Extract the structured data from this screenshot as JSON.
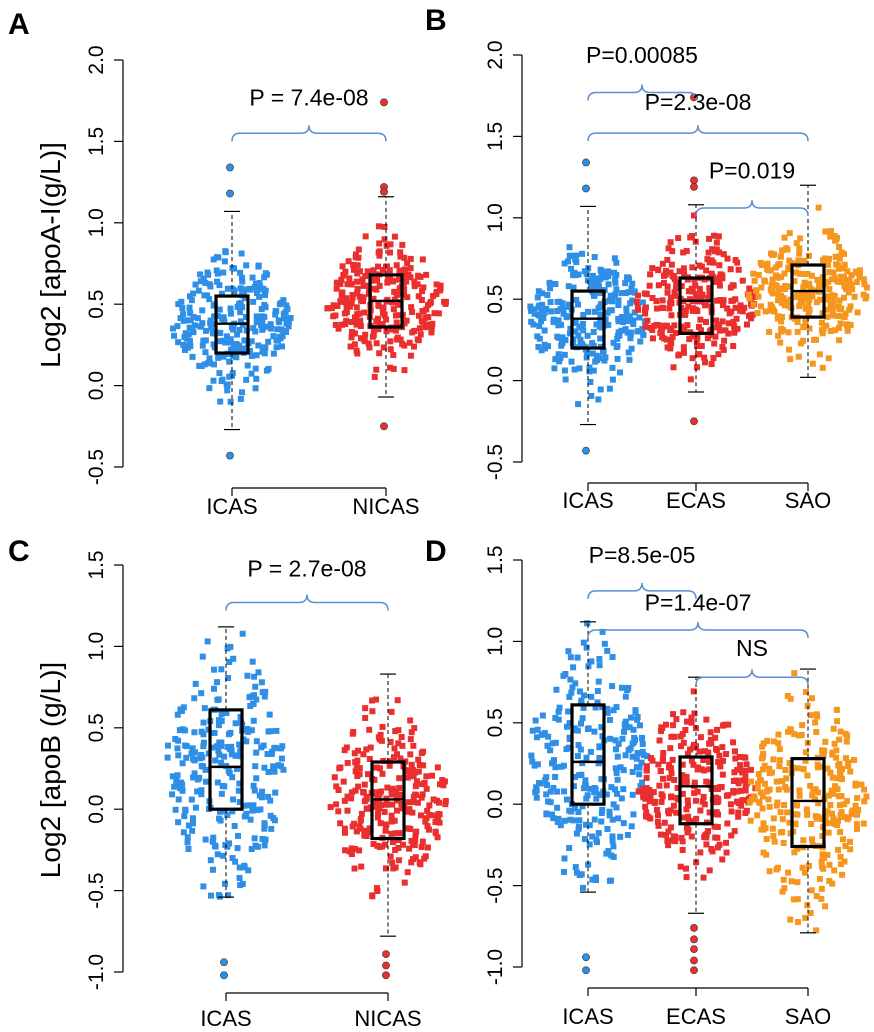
{
  "figure": {
    "ylabels": [
      "Log2 [apoA-I(g/L)]",
      "Log2 [apoB (g/L)]"
    ]
  },
  "colors": {
    "ICAS": "#2f8fe6",
    "NICAS": "#ea2f2f",
    "ECAS": "#ea2f2f",
    "SAO": "#f5961e",
    "bracket": "#5b8fd0",
    "box": "#000000",
    "axis": "#000000"
  },
  "chart_data": [
    {
      "panel": "A",
      "type": "boxplot",
      "groups": [
        "ICAS",
        "NICAS"
      ],
      "ylim": [
        -0.5,
        2.0
      ],
      "yticks": [
        "-0.5",
        "0.0",
        "0.5",
        "1.0",
        "1.5",
        "2.0"
      ],
      "yticks_num": [
        -0.5,
        0.0,
        0.5,
        1.0,
        1.5,
        2.0
      ],
      "boxes": [
        {
          "group": "ICAS",
          "q1": 0.2,
          "median": 0.38,
          "q3": 0.55,
          "whisker_low": -0.27,
          "whisker_high": 1.07,
          "outliers": [
            1.34,
            1.18,
            -0.43
          ],
          "spread_low": -0.27,
          "spread_high": 1.07
        },
        {
          "group": "NICAS",
          "q1": 0.36,
          "median": 0.52,
          "q3": 0.68,
          "whisker_low": -0.07,
          "whisker_high": 1.16,
          "outliers": [
            1.74,
            1.22,
            1.19,
            -0.25
          ],
          "spread_low": -0.07,
          "spread_high": 1.16
        }
      ],
      "comparisons": [
        {
          "from": "ICAS",
          "to": "NICAS",
          "label": "P = 7.4e-08",
          "y": 1.55,
          "label_y": 1.77
        }
      ]
    },
    {
      "panel": "B",
      "type": "boxplot",
      "groups": [
        "ICAS",
        "ECAS",
        "SAO"
      ],
      "ylim": [
        -0.5,
        2.0
      ],
      "yticks": [
        "-0.5",
        "0.0",
        "0.5",
        "1.0",
        "1.5",
        "2.0"
      ],
      "yticks_num": [
        -0.5,
        0.0,
        0.5,
        1.0,
        1.5,
        2.0
      ],
      "boxes": [
        {
          "group": "ICAS",
          "q1": 0.2,
          "median": 0.38,
          "q3": 0.55,
          "whisker_low": -0.27,
          "whisker_high": 1.07,
          "outliers": [
            1.34,
            1.18,
            -0.43
          ],
          "spread_low": -0.27,
          "spread_high": 1.07
        },
        {
          "group": "ECAS",
          "q1": 0.29,
          "median": 0.49,
          "q3": 0.63,
          "whisker_low": -0.07,
          "whisker_high": 1.08,
          "outliers": [
            1.74,
            1.23,
            1.19,
            -0.25
          ],
          "spread_low": -0.07,
          "spread_high": 1.08
        },
        {
          "group": "SAO",
          "q1": 0.39,
          "median": 0.55,
          "q3": 0.71,
          "whisker_low": 0.02,
          "whisker_high": 1.2,
          "outliers": [],
          "spread_low": 0.02,
          "spread_high": 1.2
        }
      ],
      "comparisons": [
        {
          "from": "ICAS",
          "to": "ECAS",
          "label": "P=0.00085",
          "y": 1.77,
          "label_y": 2.0
        },
        {
          "from": "ICAS",
          "to": "SAO",
          "label": "P=2.3e-08",
          "y": 1.52,
          "label_y": 1.71
        },
        {
          "from": "ECAS",
          "to": "SAO",
          "label": "P=0.019",
          "y": 1.06,
          "label_y": 1.29
        }
      ]
    },
    {
      "panel": "C",
      "type": "boxplot",
      "groups": [
        "ICAS",
        "NICAS"
      ],
      "ylim": [
        -1.0,
        1.5
      ],
      "yticks": [
        "-1.0",
        "-0.5",
        "0.0",
        "0.5",
        "1.0",
        "1.5"
      ],
      "yticks_num": [
        -1.0,
        -0.5,
        0.0,
        0.5,
        1.0,
        1.5
      ],
      "boxes": [
        {
          "group": "ICAS",
          "q1": 0.0,
          "median": 0.26,
          "q3": 0.61,
          "whisker_low": -0.54,
          "whisker_high": 1.12,
          "outliers": [
            -0.94,
            -1.02
          ],
          "spread_low": -0.54,
          "spread_high": 1.12
        },
        {
          "group": "NICAS",
          "q1": -0.18,
          "median": 0.06,
          "q3": 0.29,
          "whisker_low": -0.78,
          "whisker_high": 0.83,
          "outliers": [
            -0.89,
            -0.96,
            -1.02
          ],
          "spread_low": -0.78,
          "spread_high": 0.83
        }
      ],
      "comparisons": [
        {
          "from": "ICAS",
          "to": "NICAS",
          "label": "P = 2.7e-08",
          "y": 1.27,
          "label_y": 1.48
        }
      ]
    },
    {
      "panel": "D",
      "type": "boxplot",
      "groups": [
        "ICAS",
        "ECAS",
        "SAO"
      ],
      "ylim": [
        -1.0,
        1.5
      ],
      "yticks": [
        "-1.0",
        "-0.5",
        "0.0",
        "0.5",
        "1.0",
        "1.5"
      ],
      "yticks_num": [
        -1.0,
        -0.5,
        0.0,
        0.5,
        1.0,
        1.5
      ],
      "boxes": [
        {
          "group": "ICAS",
          "q1": 0.0,
          "median": 0.26,
          "q3": 0.61,
          "whisker_low": -0.54,
          "whisker_high": 1.12,
          "outliers": [
            -0.94,
            -1.02
          ],
          "spread_low": -0.54,
          "spread_high": 1.12
        },
        {
          "group": "ECAS",
          "q1": -0.12,
          "median": 0.11,
          "q3": 0.29,
          "whisker_low": -0.67,
          "whisker_high": 0.78,
          "outliers": [
            -0.76,
            -0.83,
            -0.89,
            -0.96,
            -1.02
          ],
          "spread_low": -0.67,
          "spread_high": 0.78
        },
        {
          "group": "SAO",
          "q1": -0.26,
          "median": 0.02,
          "q3": 0.28,
          "whisker_low": -0.79,
          "whisker_high": 0.83,
          "outliers": [],
          "spread_low": -0.79,
          "spread_high": 0.83
        }
      ],
      "comparisons": [
        {
          "from": "ICAS",
          "to": "ECAS",
          "label": "P=8.5e-05",
          "y": 1.31,
          "label_y": 1.53
        },
        {
          "from": "ICAS",
          "to": "SAO",
          "label": "P=1.4e-07",
          "y": 1.07,
          "label_y": 1.24
        },
        {
          "from": "ECAS",
          "to": "SAO",
          "label": "NS",
          "y": 0.78,
          "label_y": 0.96
        }
      ]
    }
  ]
}
